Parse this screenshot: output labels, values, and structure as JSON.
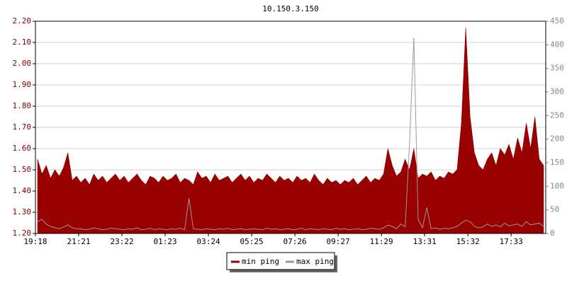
{
  "chart_data": {
    "type": "area",
    "title": "10.150.3.150",
    "categories": [
      "19:18",
      null,
      null,
      null,
      null,
      null,
      null,
      null,
      null,
      null,
      "21:21",
      null,
      null,
      null,
      null,
      null,
      null,
      null,
      null,
      null,
      "23:22",
      null,
      null,
      null,
      null,
      null,
      null,
      null,
      null,
      null,
      "01:23",
      null,
      null,
      null,
      null,
      null,
      null,
      null,
      null,
      null,
      "03:24",
      null,
      null,
      null,
      null,
      null,
      null,
      null,
      null,
      null,
      "05:25",
      null,
      null,
      null,
      null,
      null,
      null,
      null,
      null,
      null,
      "07:26",
      null,
      null,
      null,
      null,
      null,
      null,
      null,
      null,
      null,
      "09:27",
      null,
      null,
      null,
      null,
      null,
      null,
      null,
      null,
      null,
      "11:29",
      null,
      null,
      null,
      null,
      null,
      null,
      null,
      null,
      null,
      "13:31",
      null,
      null,
      null,
      null,
      null,
      null,
      null,
      null,
      null,
      "15:32",
      null,
      null,
      null,
      null,
      null,
      null,
      null,
      null,
      null,
      "17:33",
      null,
      null,
      null,
      null,
      null,
      null,
      null
    ],
    "series": [
      {
        "name": "min ping",
        "type": "area",
        "color": "#990000",
        "axis": "y",
        "values": [
          1.55,
          1.48,
          1.52,
          1.46,
          1.5,
          1.47,
          1.51,
          1.58,
          1.45,
          1.47,
          1.44,
          1.46,
          1.43,
          1.48,
          1.45,
          1.47,
          1.44,
          1.46,
          1.48,
          1.45,
          1.47,
          1.44,
          1.46,
          1.48,
          1.45,
          1.43,
          1.47,
          1.46,
          1.44,
          1.47,
          1.45,
          1.46,
          1.48,
          1.44,
          1.46,
          1.45,
          1.43,
          1.49,
          1.46,
          1.47,
          1.44,
          1.48,
          1.45,
          1.46,
          1.47,
          1.44,
          1.46,
          1.48,
          1.45,
          1.47,
          1.44,
          1.46,
          1.45,
          1.48,
          1.46,
          1.44,
          1.47,
          1.45,
          1.46,
          1.44,
          1.47,
          1.45,
          1.46,
          1.44,
          1.48,
          1.45,
          1.43,
          1.46,
          1.44,
          1.45,
          1.43,
          1.45,
          1.44,
          1.46,
          1.43,
          1.45,
          1.47,
          1.44,
          1.46,
          1.45,
          1.48,
          1.6,
          1.52,
          1.47,
          1.49,
          1.55,
          1.5,
          1.6,
          1.46,
          1.48,
          1.47,
          1.49,
          1.45,
          1.47,
          1.46,
          1.49,
          1.48,
          1.5,
          1.72,
          2.17,
          1.75,
          1.58,
          1.52,
          1.5,
          1.55,
          1.58,
          1.52,
          1.6,
          1.57,
          1.62,
          1.55,
          1.65,
          1.58,
          1.72,
          1.6,
          1.75,
          1.55,
          1.52
        ]
      },
      {
        "name": "max ping",
        "type": "line",
        "color": "#999999",
        "axis": "y2",
        "values": [
          25,
          30,
          20,
          15,
          12,
          10,
          14,
          18,
          12,
          10,
          10,
          8,
          9,
          12,
          10,
          8,
          9,
          11,
          10,
          9,
          8,
          10,
          9,
          12,
          8,
          9,
          11,
          8,
          10,
          9,
          8,
          10,
          9,
          11,
          8,
          75,
          10,
          9,
          8,
          10,
          9,
          8,
          10,
          9,
          11,
          8,
          9,
          10,
          8,
          9,
          10,
          9,
          8,
          11,
          9,
          10,
          8,
          9,
          10,
          8,
          9,
          11,
          8,
          10,
          9,
          8,
          10,
          9,
          8,
          11,
          9,
          10,
          8,
          9,
          10,
          8,
          9,
          11,
          10,
          9,
          12,
          18,
          15,
          10,
          20,
          14,
          190,
          415,
          30,
          12,
          55,
          10,
          12,
          9,
          11,
          10,
          12,
          15,
          22,
          28,
          25,
          15,
          12,
          14,
          20,
          15,
          18,
          14,
          22,
          16,
          18,
          20,
          15,
          25,
          18,
          20,
          22,
          15
        ]
      }
    ],
    "ylim": [
      1.2,
      2.2
    ],
    "yticks": [
      {
        "value": 1.2,
        "label": "1.20"
      },
      {
        "value": 1.3,
        "label": "1.30"
      },
      {
        "value": 1.4,
        "label": "1.40"
      },
      {
        "value": 1.5,
        "label": "1.50"
      },
      {
        "value": 1.6,
        "label": "1.60"
      },
      {
        "value": 1.7,
        "label": "1.70"
      },
      {
        "value": 1.8,
        "label": "1.80"
      },
      {
        "value": 1.9,
        "label": "1.90"
      },
      {
        "value": 2.0,
        "label": "2.00"
      },
      {
        "value": 2.1,
        "label": "2.10"
      },
      {
        "value": 2.2,
        "label": "2.20"
      }
    ],
    "y2lim": [
      0,
      450
    ],
    "y2ticks": [
      0,
      50,
      100,
      150,
      200,
      250,
      300,
      350,
      400,
      450
    ],
    "grid": true
  }
}
